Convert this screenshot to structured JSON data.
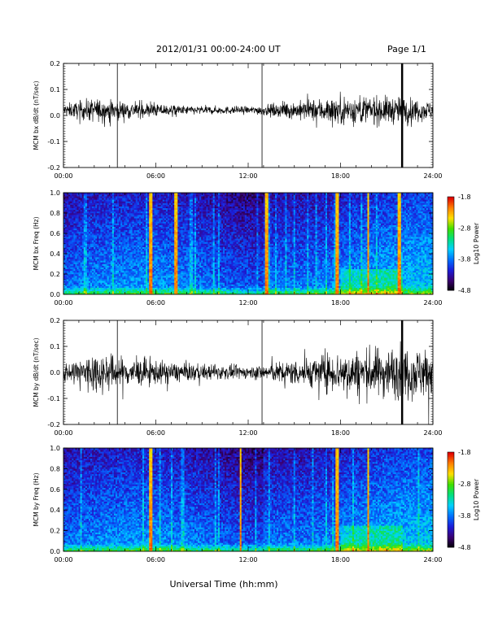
{
  "header": {
    "date_range": "2012/01/31  00:00-24:00 UT",
    "page": "Page 1/1"
  },
  "xaxis": {
    "label": "Universal Time (hh:mm)",
    "ticks": [
      "00:00",
      "06:00",
      "12:00",
      "18:00",
      "24:00"
    ],
    "range_hours": [
      0,
      24
    ]
  },
  "colorbar": {
    "label": "Log10 Power",
    "ticks": [
      "-1.8",
      "-2.8",
      "-3.8",
      "-4.8"
    ],
    "range": [
      -4.8,
      -1.8
    ],
    "colormap": [
      "#000000",
      "#3a0070",
      "#1c1cd8",
      "#0070ff",
      "#00d0ff",
      "#00e080",
      "#40e000",
      "#ffe000",
      "#ff8000",
      "#e00000"
    ]
  },
  "chart_data": [
    {
      "type": "line",
      "ylabel": "MCM bx dB/dt (nT/sec)",
      "ylim": [
        -0.2,
        0.2
      ],
      "yticks": [
        "0.2",
        "0.1",
        "0.0",
        "-0.1",
        "-0.2"
      ],
      "baseline": 0.02,
      "amplitude_envelope": [
        {
          "hour": 0,
          "amp": 0.02
        },
        {
          "hour": 2,
          "amp": 0.04
        },
        {
          "hour": 4,
          "amp": 0.03
        },
        {
          "hour": 8,
          "amp": 0.015
        },
        {
          "hour": 12,
          "amp": 0.012
        },
        {
          "hour": 16,
          "amp": 0.035
        },
        {
          "hour": 18,
          "amp": 0.05
        },
        {
          "hour": 22,
          "amp": 0.045
        },
        {
          "hour": 24,
          "amp": 0.03
        }
      ],
      "vertical_markers_hours": [
        3.5,
        12.9,
        22.0
      ],
      "spikes": [
        {
          "hour": 22.0,
          "ymin": -0.2,
          "ymax": 0.2
        }
      ]
    },
    {
      "type": "heatmap",
      "ylabel": "MCM bx Freq (Hz)",
      "ylim": [
        0.0,
        1.0
      ],
      "yticks": [
        "1.0",
        "0.8",
        "0.6",
        "0.4",
        "0.2",
        "0.0"
      ],
      "bright_lines_hours": [
        5.7,
        7.3,
        13.2,
        17.8,
        19.8,
        21.8
      ]
    },
    {
      "type": "line",
      "ylabel": "MCM by dB/dt (nT/sec)",
      "ylim": [
        -0.2,
        0.2
      ],
      "yticks": [
        "0.2",
        "0.1",
        "0.0",
        "-0.1",
        "-0.2"
      ],
      "baseline": 0.0,
      "amplitude_envelope": [
        {
          "hour": 0,
          "amp": 0.03
        },
        {
          "hour": 2,
          "amp": 0.07
        },
        {
          "hour": 4,
          "amp": 0.05
        },
        {
          "hour": 8,
          "amp": 0.03
        },
        {
          "hour": 12,
          "amp": 0.02
        },
        {
          "hour": 16,
          "amp": 0.05
        },
        {
          "hour": 18,
          "amp": 0.07
        },
        {
          "hour": 22,
          "amp": 0.09
        },
        {
          "hour": 24,
          "amp": 0.08
        }
      ],
      "vertical_markers_hours": [
        3.5,
        12.9,
        22.0
      ],
      "spikes": [
        {
          "hour": 22.0,
          "ymin": -0.2,
          "ymax": 0.2
        }
      ]
    },
    {
      "type": "heatmap",
      "ylabel": "MCM by Freq (Hz)",
      "ylim": [
        0.0,
        1.0
      ],
      "yticks": [
        "1.0",
        "0.8",
        "0.6",
        "0.4",
        "0.2",
        "0.0"
      ],
      "bright_lines_hours": [
        5.7,
        11.5,
        17.8,
        19.8
      ]
    }
  ]
}
